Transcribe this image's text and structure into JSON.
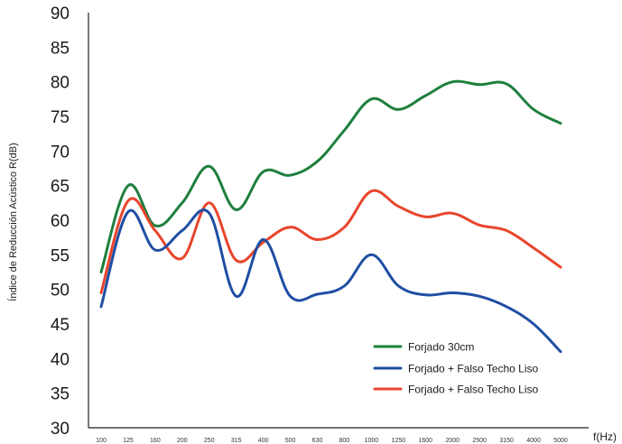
{
  "chart_data": {
    "type": "line",
    "xlabel": "f(Hz)",
    "ylabel": "Índice de Reducción Acústico R(dB)",
    "ylim": [
      30,
      90
    ],
    "yticks": [
      "30",
      "35",
      "40",
      "45",
      "50",
      "55",
      "60",
      "65",
      "70",
      "75",
      "80",
      "85",
      "90"
    ],
    "categories": [
      "100",
      "125",
      "160",
      "200",
      "250",
      "315",
      "400",
      "500",
      "630",
      "800",
      "1000",
      "1250",
      "1600",
      "2000",
      "2500",
      "3150",
      "4000",
      "5000"
    ],
    "grid": false,
    "legend_position": "bottom-right",
    "series": [
      {
        "name": "Forjado 30cm",
        "color": "#1e7f3d",
        "values": [
          52.5,
          65.0,
          59.2,
          62.5,
          67.8,
          61.5,
          67.0,
          66.5,
          68.5,
          73.0,
          77.5,
          76.0,
          78.0,
          80.0,
          79.6,
          79.7,
          76.0,
          74.0
        ]
      },
      {
        "name": "Forjado + Falso Techo Liso",
        "color": "#1f4ea3",
        "values": [
          47.5,
          61.2,
          55.7,
          58.5,
          61.0,
          49.0,
          57.2,
          49.0,
          49.3,
          50.5,
          55.0,
          50.5,
          49.2,
          49.5,
          49.0,
          47.5,
          45.0,
          41.0
        ]
      },
      {
        "name": "Forjado + Falso Techo Liso",
        "color": "#e8452c",
        "values": [
          49.5,
          62.8,
          58.5,
          54.5,
          62.5,
          54.2,
          56.8,
          59.0,
          57.2,
          59.0,
          64.2,
          62.0,
          60.5,
          61.0,
          59.3,
          58.5,
          56.0,
          53.2
        ]
      }
    ]
  }
}
